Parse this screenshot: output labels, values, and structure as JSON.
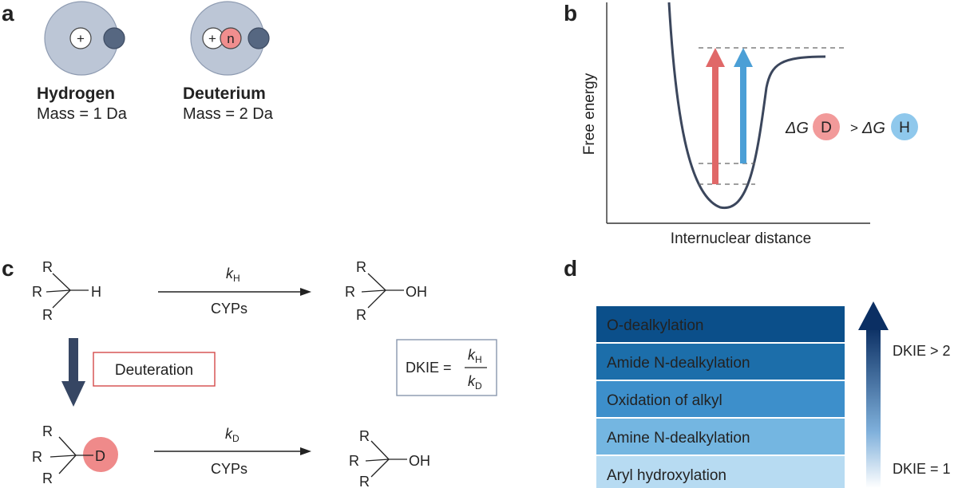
{
  "panels": {
    "a": "a",
    "b": "b",
    "c": "c",
    "d": "d"
  },
  "panel_a": {
    "hydrogen": {
      "name": "Hydrogen",
      "mass": "Mass = 1 Da",
      "proton_symbol": "+"
    },
    "deuterium": {
      "name": "Deuterium",
      "mass": "Mass = 2 Da",
      "proton_symbol": "+",
      "neutron_symbol": "n"
    }
  },
  "panel_b": {
    "ylabel": "Free energy",
    "xlabel": "Internuclear distance",
    "equation": {
      "delta_g": "ΔG",
      "isotope_d": "D",
      "greater": ">",
      "isotope_h": "H"
    },
    "colors": {
      "deuterium": "#e06868",
      "hydrogen": "#4b9fd6"
    }
  },
  "panel_c": {
    "substituent": "R",
    "top_reaction": {
      "leaving_atom": "H",
      "k_symbol": "k",
      "k_sub": "H",
      "catalyst": "CYPs",
      "product_group": "OH"
    },
    "bottom_reaction": {
      "leaving_atom": "D",
      "k_symbol": "k",
      "k_sub": "D",
      "catalyst": "CYPs",
      "product_group": "OH"
    },
    "deuteration_label": "Deuteration",
    "dkie": {
      "label": "DKIE =",
      "num_symbol": "k",
      "num_sub": "H",
      "den_symbol": "k",
      "den_sub": "D"
    }
  },
  "panel_d": {
    "levels": [
      {
        "label": "O-dealkylation",
        "color": "#0b4f8a"
      },
      {
        "label": "Amide N-dealkylation",
        "color": "#1c6eaa"
      },
      {
        "label": "Oxidation of alkyl",
        "color": "#3d8fcb"
      },
      {
        "label": "Amine N-dealkylation",
        "color": "#74b6e1"
      },
      {
        "label": "Aryl hydroxylation",
        "color": "#b7dbf2"
      }
    ],
    "top_label": "DKIE > 2",
    "bottom_label": "DKIE = 1"
  }
}
